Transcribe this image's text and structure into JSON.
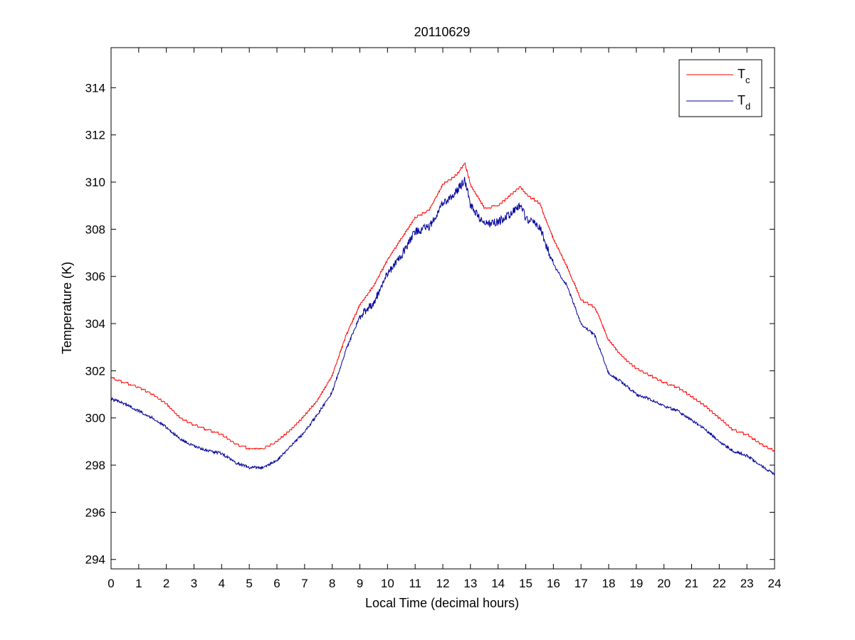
{
  "chart_data": {
    "type": "line",
    "title": "20110629",
    "xlabel": "Local Time (decimal hours)",
    "ylabel": "Temperature (K)",
    "xlim": [
      0,
      24
    ],
    "ylim": [
      293.6,
      315.7
    ],
    "xticks": [
      0,
      1,
      2,
      3,
      4,
      5,
      6,
      7,
      8,
      9,
      10,
      11,
      12,
      13,
      14,
      15,
      16,
      17,
      18,
      19,
      20,
      21,
      22,
      23,
      24
    ],
    "yticks": [
      294,
      296,
      298,
      300,
      302,
      304,
      306,
      308,
      310,
      312,
      314
    ],
    "grid": false,
    "legend_position": "top-right",
    "series": [
      {
        "name": "T_c",
        "label_main": "T",
        "label_sub": "c",
        "color": "#ff0000",
        "x": [
          0,
          0.5,
          1,
          1.5,
          2,
          2.5,
          3,
          3.5,
          4,
          4.5,
          5,
          5.5,
          6,
          6.5,
          7,
          7.5,
          8,
          8.5,
          9,
          9.5,
          10,
          10.5,
          11,
          11.5,
          12,
          12.5,
          12.8,
          13,
          13.5,
          14,
          14.5,
          14.8,
          15,
          15.5,
          16,
          16.5,
          17,
          17.5,
          18,
          18.5,
          19,
          19.5,
          20,
          20.5,
          21,
          21.5,
          22,
          22.5,
          23,
          23.5,
          24
        ],
        "y": [
          301.7,
          301.5,
          301.3,
          301.0,
          300.6,
          300.0,
          299.7,
          299.5,
          299.3,
          298.9,
          298.7,
          298.7,
          299.0,
          299.5,
          300.1,
          300.8,
          301.8,
          303.5,
          304.8,
          305.6,
          306.7,
          307.6,
          308.5,
          308.8,
          309.9,
          310.3,
          310.8,
          309.9,
          308.9,
          309.0,
          309.5,
          309.8,
          309.5,
          309.1,
          307.6,
          306.4,
          305.0,
          304.7,
          303.3,
          302.6,
          302.1,
          301.8,
          301.5,
          301.3,
          300.9,
          300.5,
          300.0,
          299.5,
          299.3,
          298.9,
          298.6
        ]
      },
      {
        "name": "T_d",
        "label_main": "T",
        "label_sub": "d",
        "color": "#000099",
        "x": [
          0,
          0.5,
          1,
          1.5,
          2,
          2.5,
          3,
          3.5,
          4,
          4.5,
          5,
          5.5,
          6,
          6.5,
          7,
          7.5,
          8,
          8.5,
          9,
          9.5,
          10,
          10.5,
          11,
          11.5,
          12,
          12.5,
          12.8,
          13,
          13.5,
          14,
          14.5,
          14.8,
          15,
          15.5,
          16,
          16.5,
          17,
          17.5,
          18,
          18.5,
          19,
          19.5,
          20,
          20.5,
          21,
          21.5,
          22,
          22.5,
          23,
          23.5,
          24
        ],
        "y": [
          300.8,
          300.6,
          300.3,
          300.0,
          299.6,
          299.1,
          298.8,
          298.6,
          298.5,
          298.1,
          297.9,
          297.9,
          298.2,
          298.8,
          299.4,
          300.2,
          301.1,
          302.9,
          304.3,
          304.9,
          306.1,
          306.9,
          307.9,
          308.1,
          309.1,
          309.6,
          310.1,
          309.0,
          308.2,
          308.3,
          308.7,
          309.0,
          308.5,
          308.1,
          306.5,
          305.6,
          304.0,
          303.5,
          301.9,
          301.5,
          301.0,
          300.8,
          300.5,
          300.3,
          299.9,
          299.5,
          299.0,
          298.6,
          298.4,
          298.0,
          297.6
        ]
      }
    ]
  }
}
